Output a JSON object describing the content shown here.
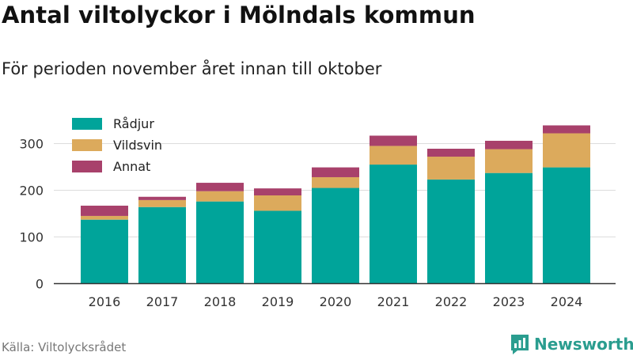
{
  "title": "Antal viltolyckor i Mölndals kommun",
  "subtitle": "För perioden november året innan till oktober",
  "source": "Källa: Viltolycksrådet",
  "brand": "Newsworthy",
  "colors": {
    "radjur": "#00a49a",
    "vildsvin": "#dcaa5c",
    "annat": "#a8416b",
    "grid": "#dddddd",
    "axis": "#333333",
    "brand": "#2a9d8f"
  },
  "chart_data": {
    "type": "bar",
    "stacked": true,
    "categories": [
      "2016",
      "2017",
      "2018",
      "2019",
      "2020",
      "2021",
      "2022",
      "2023",
      "2024"
    ],
    "series": [
      {
        "name": "Rådjur",
        "values": [
          137,
          164,
          176,
          156,
          205,
          255,
          223,
          237,
          249
        ]
      },
      {
        "name": "Vildsvin",
        "values": [
          8,
          15,
          22,
          33,
          23,
          40,
          49,
          51,
          73
        ]
      },
      {
        "name": "Annat",
        "values": [
          22,
          7,
          18,
          15,
          21,
          22,
          17,
          18,
          17
        ]
      }
    ],
    "ylim": [
      0,
      350
    ],
    "yticks": [
      0,
      100,
      200,
      300
    ],
    "grid": true,
    "legend_position": "top-left"
  }
}
